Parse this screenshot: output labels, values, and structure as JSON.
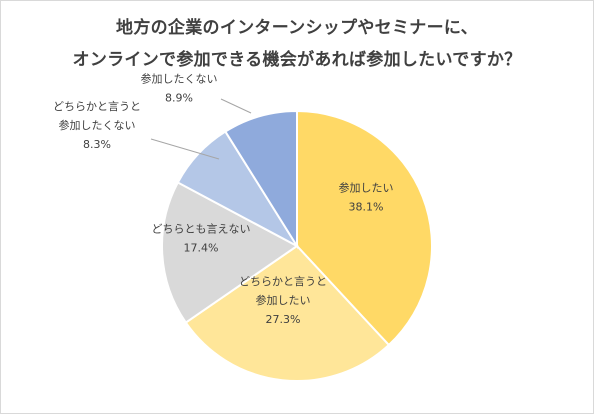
{
  "chart_data": {
    "type": "pie",
    "title_lines": [
      "地方の企業のインターンシップやセミナーに、",
      "オンラインで参加できる機会があれば参加したいですか？"
    ],
    "slices": [
      {
        "label_lines": [
          "参加したい"
        ],
        "value": 38.1,
        "value_text": "38.1%",
        "color": "#ffd966"
      },
      {
        "label_lines": [
          "どちらかと言うと",
          "参加したい"
        ],
        "value": 27.3,
        "value_text": "27.3%",
        "color": "#ffe699"
      },
      {
        "label_lines": [
          "どちらとも言えない"
        ],
        "value": 17.4,
        "value_text": "17.4%",
        "color": "#d9d9d9"
      },
      {
        "label_lines": [
          "どちらかと言うと",
          "参加したくない"
        ],
        "value": 8.3,
        "value_text": "8.3%",
        "color": "#b4c7e7"
      },
      {
        "label_lines": [
          "参加したくない"
        ],
        "value": 8.9,
        "value_text": "8.9%",
        "color": "#8faadc"
      }
    ],
    "start": "12 o'clock",
    "direction": "clockwise"
  }
}
